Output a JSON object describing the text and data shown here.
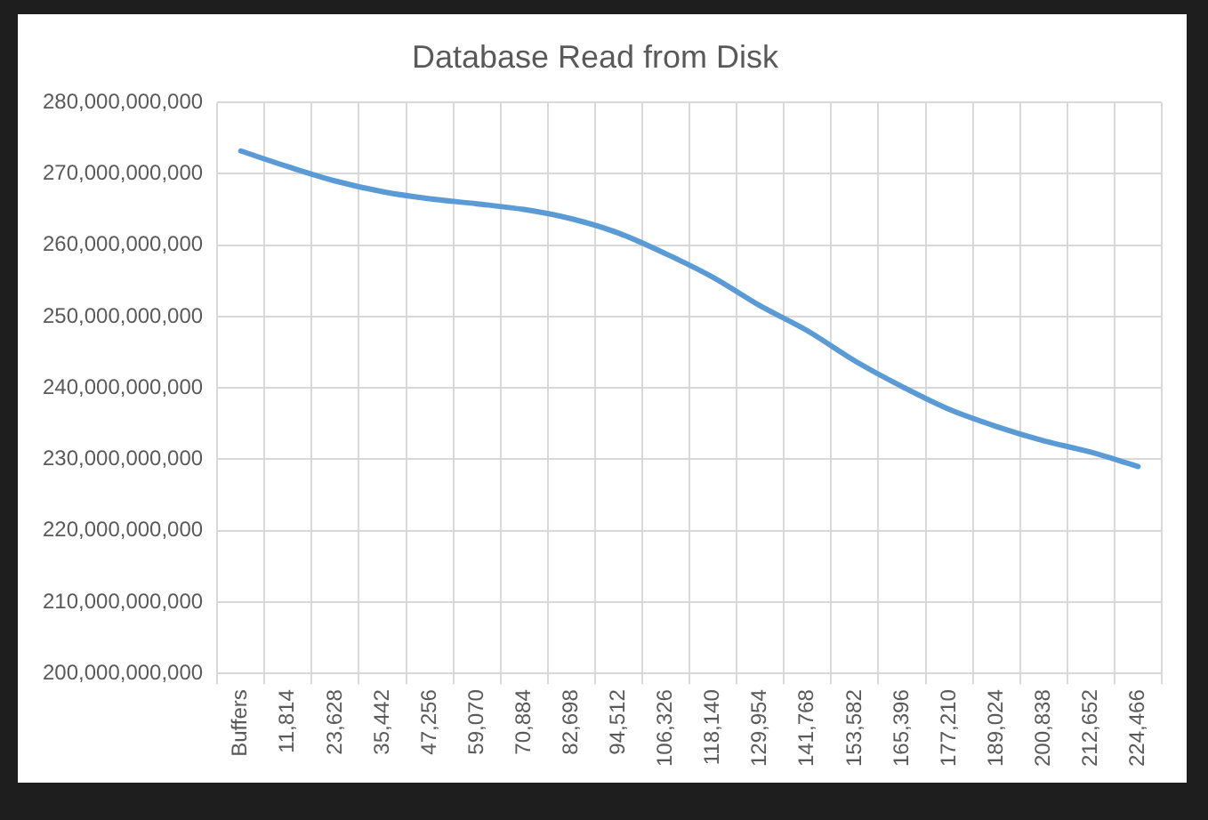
{
  "chart_data": {
    "type": "line",
    "title": "Database Read from Disk",
    "categories": [
      "Buffers",
      "11,814",
      "23,628",
      "35,442",
      "47,256",
      "59,070",
      "70,884",
      "82,698",
      "94,512",
      "106,326",
      "118,140",
      "129,954",
      "141,768",
      "153,582",
      "165,396",
      "177,210",
      "189,024",
      "200,838",
      "212,652",
      "224,466"
    ],
    "series": [
      {
        "color": "#5b9bd5",
        "values": [
          273200000000,
          271000000000,
          269000000000,
          267500000000,
          266500000000,
          265800000000,
          265000000000,
          263700000000,
          261700000000,
          258800000000,
          255500000000,
          251500000000,
          248000000000,
          243800000000,
          240200000000,
          237000000000,
          234600000000,
          232600000000,
          231000000000,
          229000000000
        ]
      }
    ],
    "ylim": [
      200000000000,
      280000000000
    ],
    "yticks": [
      {
        "value": 200000000000,
        "label": "200,000,000,000"
      },
      {
        "value": 210000000000,
        "label": "210,000,000,000"
      },
      {
        "value": 220000000000,
        "label": "220,000,000,000"
      },
      {
        "value": 230000000000,
        "label": "230,000,000,000"
      },
      {
        "value": 240000000000,
        "label": "240,000,000,000"
      },
      {
        "value": 250000000000,
        "label": "250,000,000,000"
      },
      {
        "value": 260000000000,
        "label": "260,000,000,000"
      },
      {
        "value": 270000000000,
        "label": "270,000,000,000"
      },
      {
        "value": 280000000000,
        "label": "280,000,000,000"
      }
    ],
    "grid": true,
    "legend": false,
    "marker": "none",
    "line_style": "solid"
  }
}
